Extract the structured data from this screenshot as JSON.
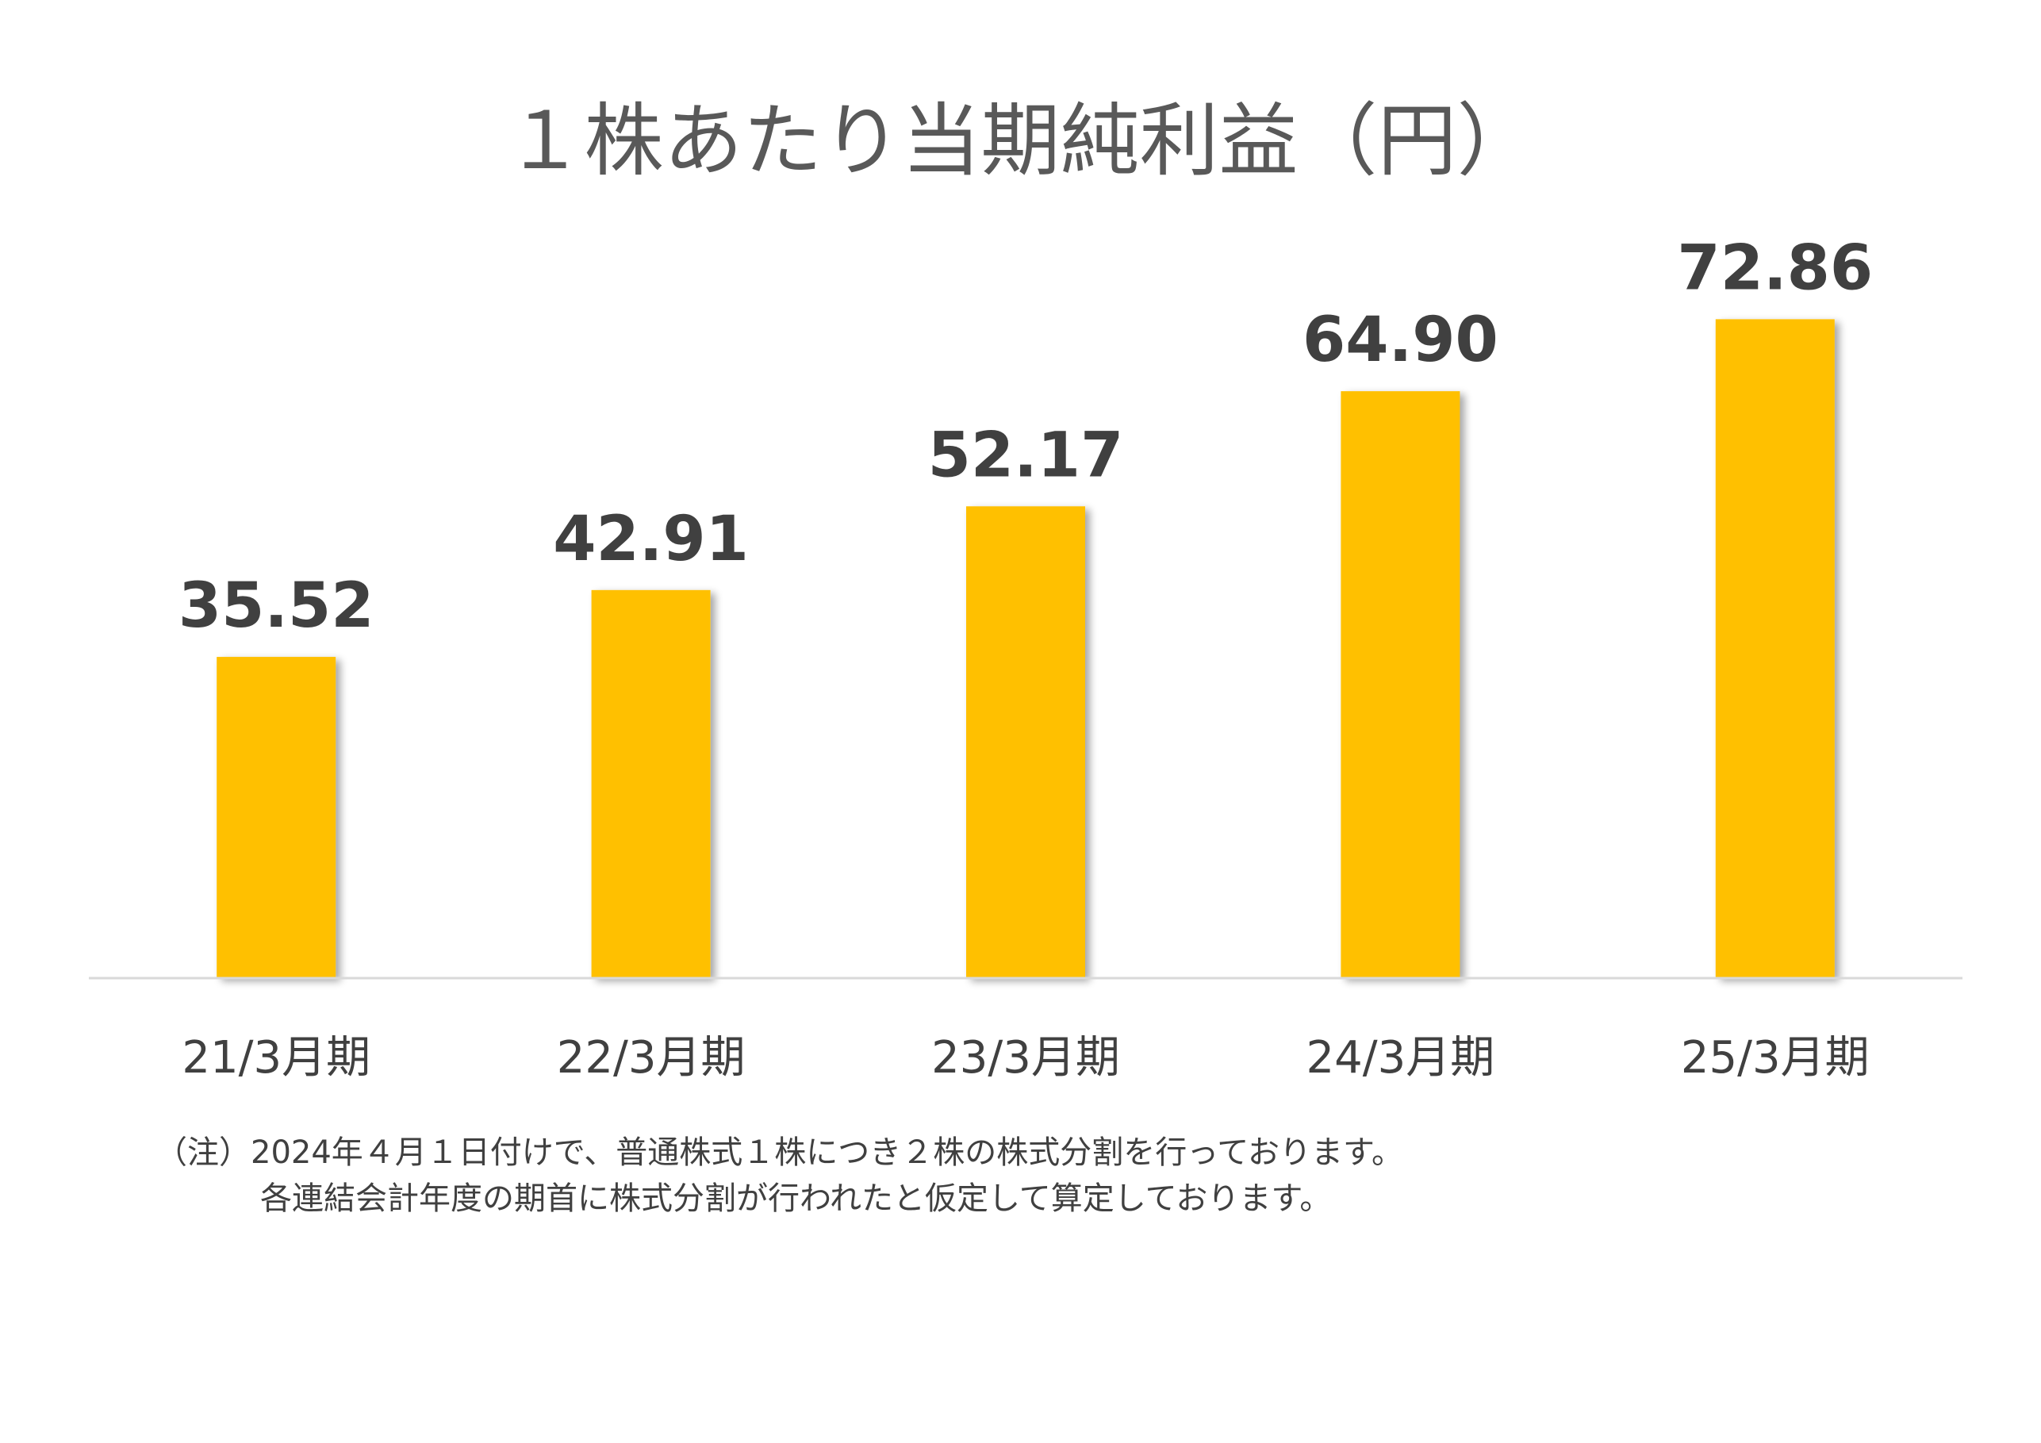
{
  "chart_data": {
    "type": "bar",
    "title": "１株あたり当期純利益（円）",
    "xlabel": "",
    "ylabel": "",
    "categories": [
      "21/3月期",
      "22/3月期",
      "23/3月期",
      "24/3月期",
      "25/3月期"
    ],
    "values": [
      35.52,
      42.91,
      52.17,
      64.9,
      72.86
    ],
    "value_labels": [
      "35.52",
      "42.91",
      "52.17",
      "64.90",
      "72.86"
    ],
    "ylim": [
      0,
      80
    ],
    "grid": false,
    "legend": "none",
    "colors": {
      "bar": "#FFC000",
      "axis": "#D9D9D9",
      "value_text": "#404040",
      "category_text": "#404040"
    }
  },
  "note": {
    "line1": "（注）2024年４月１日付けで、普通株式１株につき２株の株式分割を行っております。",
    "line2": "各連結会計年度の期首に株式分割が行われたと仮定して算定しております。"
  }
}
